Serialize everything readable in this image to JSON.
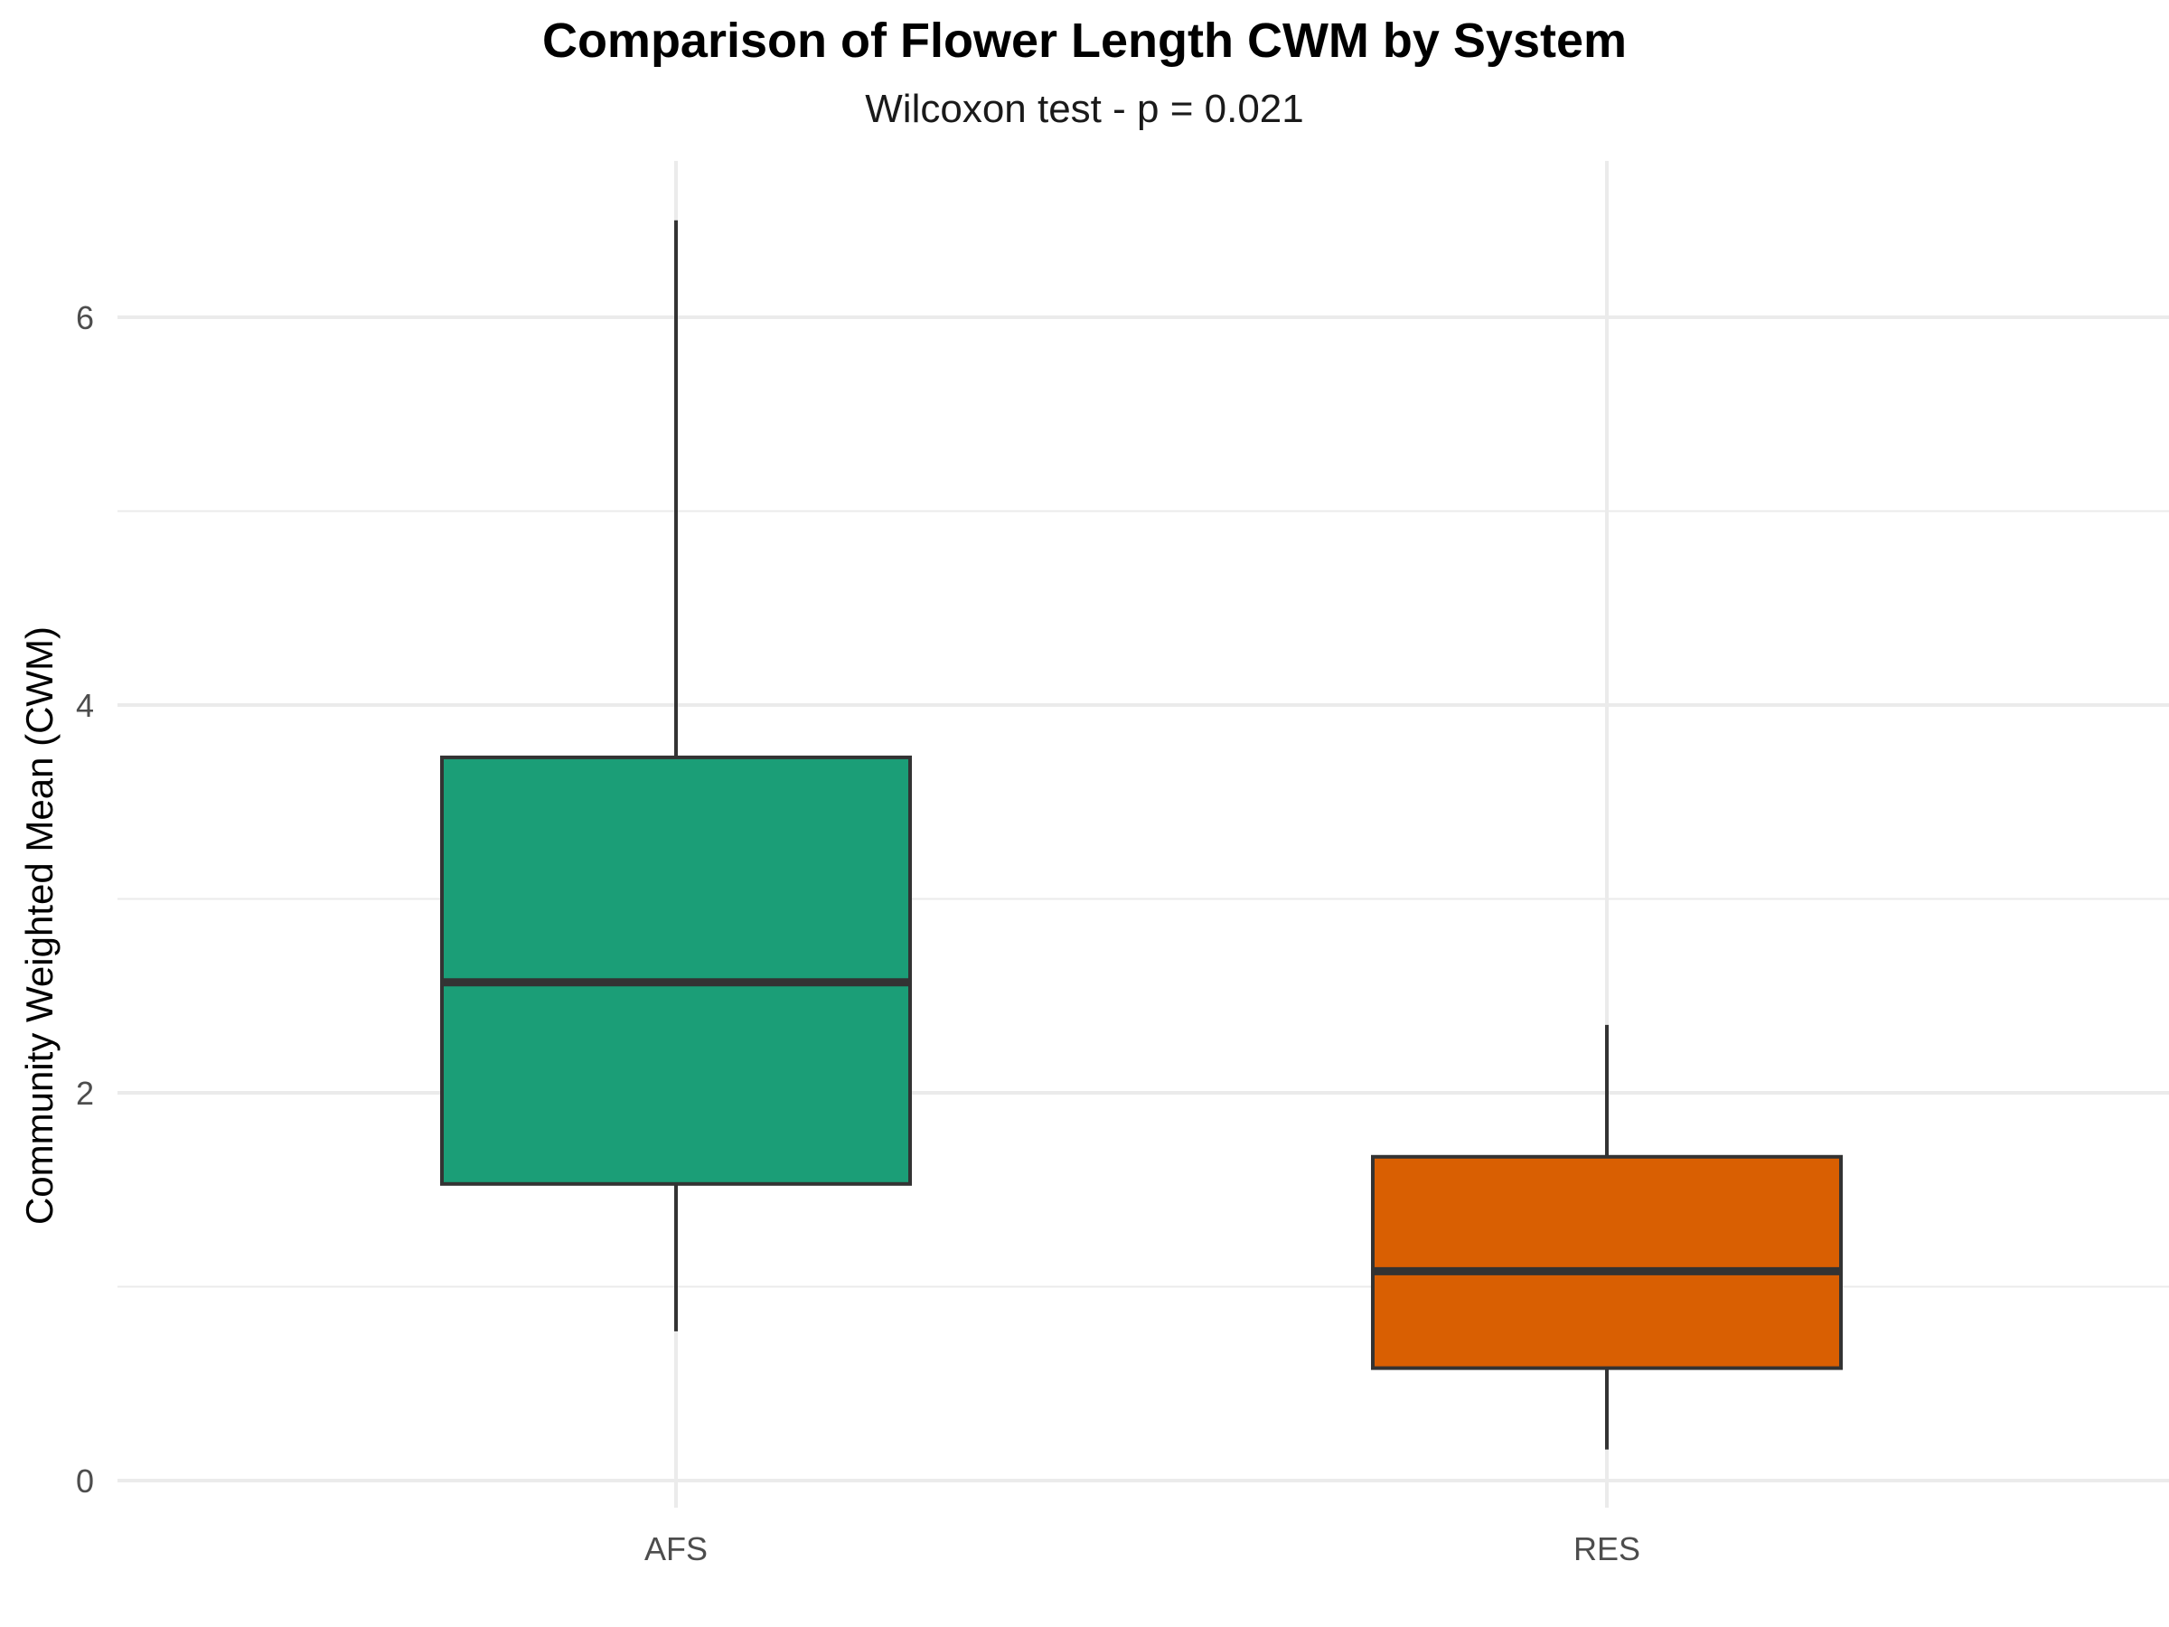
{
  "chart_data": {
    "type": "box",
    "title": "Comparison of Flower Length CWM by System",
    "subtitle": "Wilcoxon test - p = 0.021",
    "xlabel": "",
    "ylabel": "Community Weighted Mean (CWM)",
    "ylim": [
      -0.2,
      6.8
    ],
    "y_ticks": [
      0,
      2,
      4,
      6
    ],
    "y_tick_labels": [
      "0",
      "2",
      "4",
      "6"
    ],
    "grid": true,
    "categories": [
      "AFS",
      "RES"
    ],
    "boxes": [
      {
        "category": "AFS",
        "min": 0.77,
        "q1": 1.53,
        "median": 2.57,
        "q3": 3.73,
        "max": 6.5,
        "color": "#1b9e77"
      },
      {
        "category": "RES",
        "min": 0.16,
        "q1": 0.58,
        "median": 1.08,
        "q3": 1.67,
        "max": 2.35,
        "color": "#d95f02"
      }
    ],
    "colors": {
      "outline": "#333333",
      "grid": "#ebebeb",
      "tick_text": "#4d4d4d"
    }
  }
}
